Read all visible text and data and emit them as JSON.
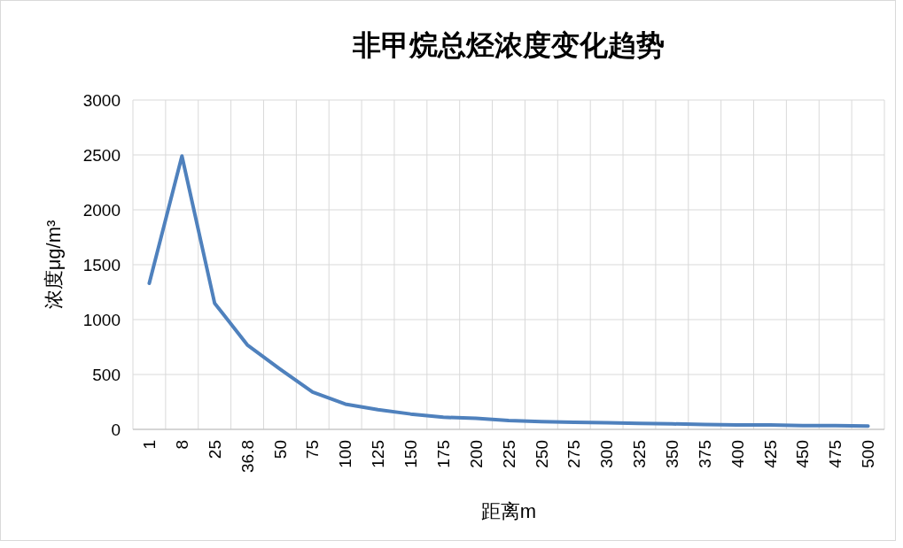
{
  "chart_data": {
    "type": "line",
    "title": "非甲烷总烃浓度变化趋势",
    "xlabel": "距离m",
    "ylabel": "浓度μg/m³",
    "categories": [
      "1",
      "8",
      "25",
      "36.8",
      "50",
      "75",
      "100",
      "125",
      "150",
      "175",
      "200",
      "225",
      "250",
      "275",
      "300",
      "325",
      "350",
      "375",
      "400",
      "425",
      "450",
      "475",
      "500"
    ],
    "series": [
      {
        "color": "#4f81bd",
        "values": [
          1330,
          2490,
          1150,
          770,
          550,
          340,
          230,
          180,
          140,
          110,
          100,
          80,
          70,
          65,
          60,
          55,
          50,
          45,
          40,
          40,
          35,
          35,
          30
        ]
      }
    ],
    "ylim": [
      0,
      3000
    ],
    "yticks": [
      0,
      500,
      1000,
      1500,
      2000,
      2500,
      3000
    ],
    "grid": true,
    "marker": "none",
    "line_style": "solid"
  }
}
